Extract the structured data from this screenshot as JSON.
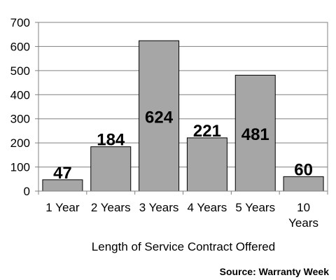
{
  "chart_data": {
    "type": "bar",
    "categories": [
      "1 Year",
      "2 Years",
      "3 Years",
      "4 Years",
      "5 Years",
      "10 Years"
    ],
    "values": [
      47,
      184,
      624,
      221,
      481,
      60
    ],
    "data_labels": [
      "47",
      "184",
      "624",
      "221",
      "481",
      "60"
    ],
    "xlabel": "Length of Service Contract Offered",
    "ylabel": "",
    "ylim": [
      0,
      700
    ],
    "yticks": [
      0,
      100,
      200,
      300,
      400,
      500,
      600,
      700
    ],
    "grid": true,
    "bar_color": "#a6a6a6",
    "bar_edge_color": "#000000",
    "legend": "none"
  },
  "source_text": "Source: Warranty Week"
}
